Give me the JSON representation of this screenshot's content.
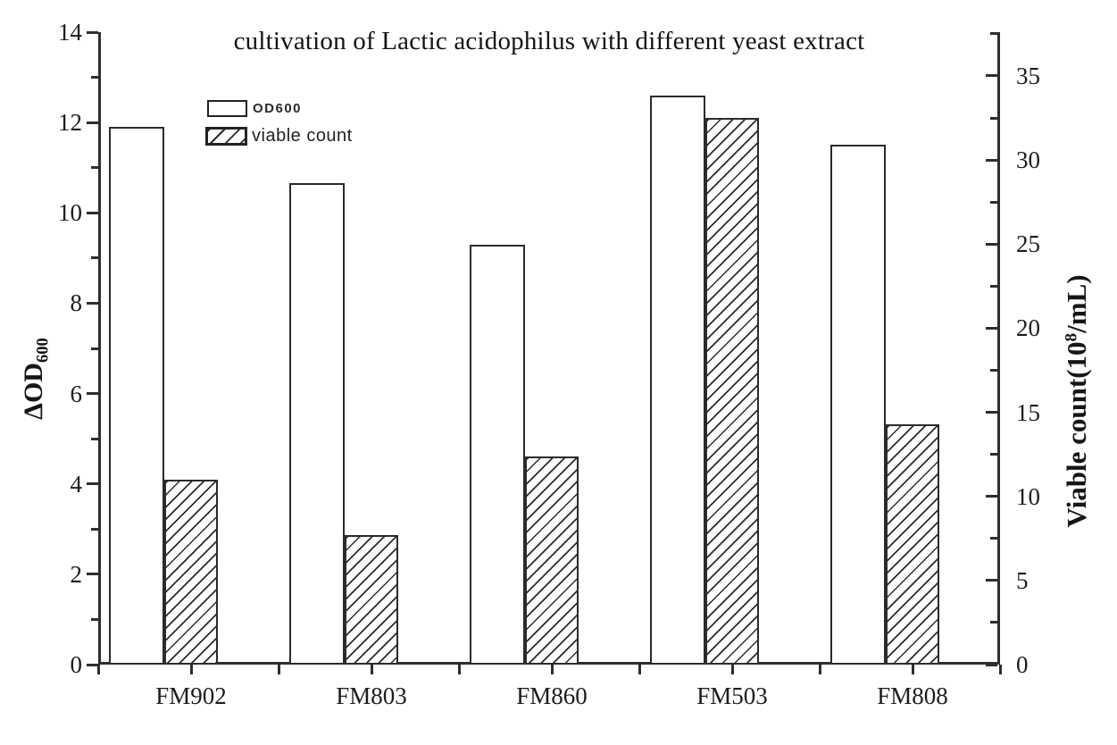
{
  "colors": {
    "ink": "#1c1c1c",
    "line": "#2e2e2e",
    "background": "#ffffff"
  },
  "chart_data": {
    "type": "bar",
    "title": "cultivation of Lactic acidophilus with different yeast extract",
    "categories": [
      "FM902",
      "FM803",
      "FM860",
      "FM503",
      "FM808"
    ],
    "series": [
      {
        "name": "OD600",
        "axis": "left",
        "style": "plain-outline",
        "values": [
          11.9,
          10.65,
          9.3,
          12.6,
          11.5
        ]
      },
      {
        "name": "viable count",
        "axis": "right",
        "style": "diagonal-hatch",
        "values": [
          11.0,
          7.7,
          12.4,
          32.5,
          14.3
        ]
      }
    ],
    "left_axis": {
      "label": "ΔOD600",
      "label_delta": "Δ",
      "label_main": "OD",
      "label_sub": "600",
      "range": [
        0,
        14
      ],
      "major_ticks": [
        0,
        2,
        4,
        6,
        8,
        10,
        12,
        14
      ],
      "minor_ticks": [
        1,
        3,
        5,
        7,
        9,
        11,
        13
      ]
    },
    "right_axis": {
      "label": "Viable count(10^8/mL)",
      "label_pre": "Viable count(10",
      "label_sup": "8",
      "label_post": "/mL)",
      "range": [
        0,
        37.6
      ],
      "major_ticks": [
        0,
        5,
        10,
        15,
        20,
        25,
        30,
        35
      ],
      "minor_ticks": [
        2.5,
        7.5,
        12.5,
        17.5,
        22.5,
        27.5,
        32.5,
        37.5
      ]
    },
    "legend_position": "top-left-inside",
    "grid": false
  }
}
